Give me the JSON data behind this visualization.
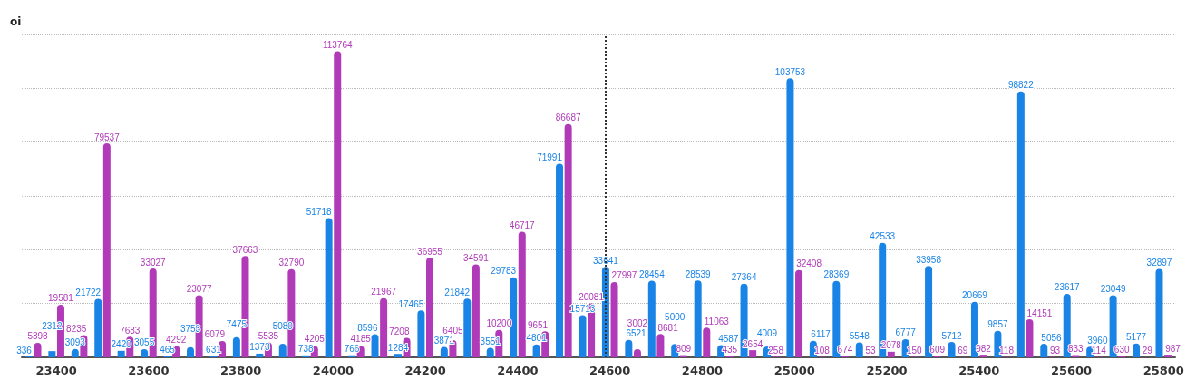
{
  "chart_data": {
    "type": "bar",
    "ylabel": "oi",
    "categories": [
      null,
      "23400",
      null,
      null,
      null,
      "23600",
      null,
      null,
      null,
      "23800",
      null,
      null,
      null,
      "24000",
      null,
      null,
      null,
      "24200",
      null,
      null,
      null,
      "24400",
      null,
      null,
      null,
      "24600",
      null,
      null,
      null,
      "24800",
      null,
      null,
      null,
      "25000",
      null,
      null,
      null,
      "25200",
      null,
      null,
      null,
      "25400",
      null,
      null,
      null,
      "25600",
      null,
      null,
      null,
      "25800"
    ],
    "series": [
      {
        "color": "#1a84e6",
        "values": [
          336,
          2312,
          3093,
          21722,
          2420,
          3055,
          465,
          3753,
          631,
          7475,
          1373,
          5080,
          738,
          51718,
          766,
          8596,
          1284,
          17465,
          3871,
          21842,
          3551,
          29783,
          4801,
          71991,
          15713,
          33641,
          6521,
          28454,
          5000,
          28539,
          4587,
          27364,
          4009,
          103753,
          6117,
          28369,
          5548,
          42533,
          6777,
          33958,
          5712,
          20669,
          9857,
          98822,
          5056,
          23617,
          3960,
          23049,
          5177,
          32897
        ]
      },
      {
        "color": "#b03ab8",
        "values": [
          5398,
          19581,
          8235,
          79537,
          7683,
          33027,
          4292,
          23077,
          6079,
          37663,
          5535,
          32790,
          4205,
          113764,
          4185,
          21967,
          7208,
          36955,
          6405,
          34591,
          10200,
          46717,
          9651,
          86687,
          20081,
          27997,
          3002,
          8681,
          809,
          11063,
          435,
          2654,
          258,
          32408,
          108,
          674,
          53,
          2078,
          150,
          609,
          69,
          982,
          118,
          14151,
          93,
          833,
          114,
          630,
          29,
          987
        ]
      }
    ],
    "ylim": [
      0,
      120000
    ],
    "yticks": [
      {
        "value": 0,
        "label": null
      },
      {
        "value": 20000,
        "label": null
      },
      {
        "value": 40000,
        "label": null
      },
      {
        "value": 60000,
        "label": null
      },
      {
        "value": 80000,
        "label": null
      },
      {
        "value": 100000,
        "label": null
      },
      {
        "value": 120000,
        "label": null
      }
    ],
    "tick_labels": "x",
    "grid": "y",
    "data_labels": true,
    "ref_lines": [
      {
        "axis": "x",
        "value": "24600",
        "line_style": "dotted",
        "color": "#333333"
      }
    ]
  }
}
